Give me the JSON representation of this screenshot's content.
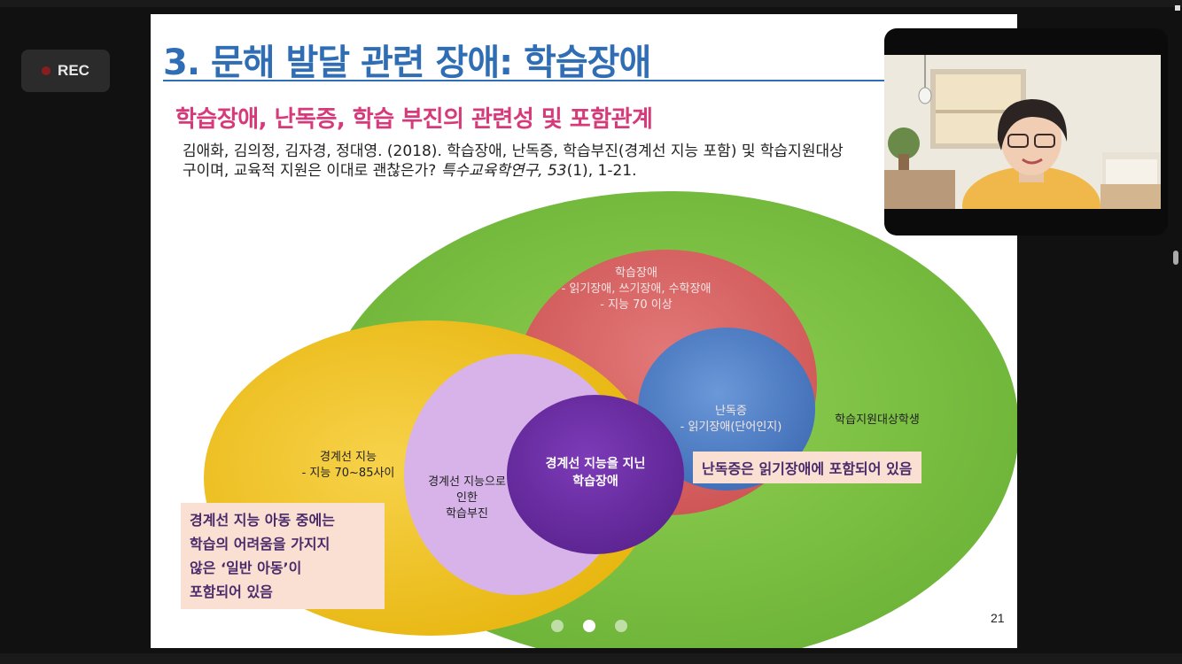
{
  "recording": {
    "label": "REC"
  },
  "slide": {
    "title": "3. 문해 발달 관련 장애: 학습장애",
    "subtitle": "학습장애, 난독증, 학습 부진의 관련성 및 포함관계",
    "citation_line1": "김애화, 김의정, 김자경, 정대영. (2018). 학습장애, 난독증, 학습부진(경계선 지능 포함) 및 학습지원대상",
    "citation_line2_plain": "구이며, 교육적 지원은 이대로 괜찮은가? ",
    "citation_line2_italic": "특수교육학연구, 53",
    "citation_line2_tail": "(1), 1-21.",
    "diagram": {
      "ld_title": "학습장애",
      "ld_line1": "-  읽기장애, 쓰기장애, 수학장애",
      "ld_line2": "-  지능 70 이상",
      "dyslexia_title": "난독증",
      "dyslexia_line1": "-  읽기장애(단어인지)",
      "support_students": "학습지원대상학생",
      "borderline_title": "경계선 지능",
      "borderline_line1": "-  지능 70~85사이",
      "underachieve_line1": "경계선 지능으로",
      "underachieve_line2": "인한",
      "underachieve_line3": "학습부진",
      "center_line1": "경계선 지능을 지닌",
      "center_line2": "학습장애"
    },
    "note_dyslexia": "난독증은 읽기장애에 포함되어 있음",
    "note_borderline_1": "경계선 지능 아동 중에는",
    "note_borderline_2": "학습의 어려움을 가지지",
    "note_borderline_3": "않은 ‘일반 아동’이",
    "note_borderline_4": "포함되어 있음",
    "page_number": "21",
    "colors": {
      "title": "#2f6db5",
      "subtitle": "#d63a7a",
      "green": "#7cc242",
      "red": "#d96666",
      "blue": "#4a78c0",
      "yellow": "#f2c21e",
      "lavender": "#d7b3ea",
      "purple": "#6a2da0"
    }
  },
  "webcam": {
    "icon": "person-video-icon"
  }
}
